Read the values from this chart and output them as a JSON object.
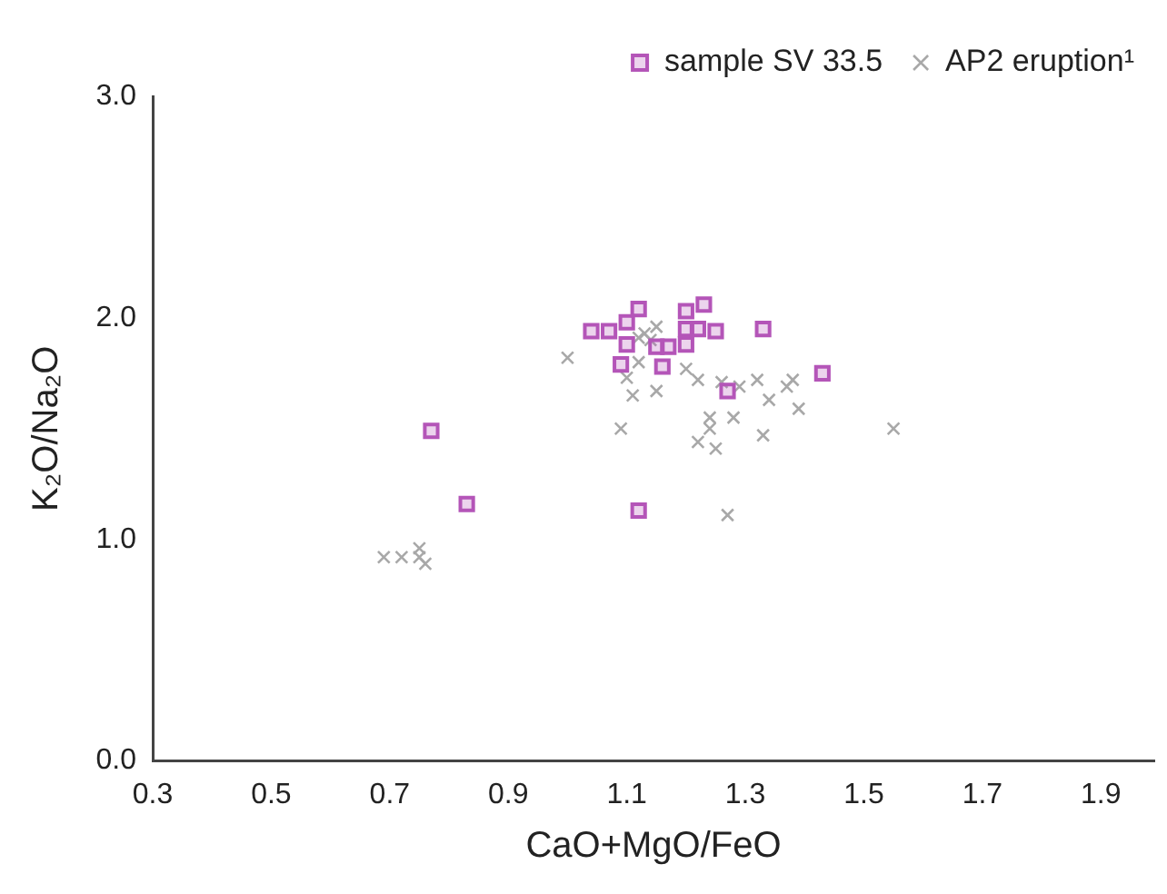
{
  "chart_data": {
    "type": "scatter",
    "xlabel": "CaO+MgO/FeO",
    "ylabel": "K₂O/Na₂O",
    "xlim": [
      0.3,
      1.99
    ],
    "xticks": [
      0.3,
      0.5,
      0.7,
      0.9,
      1.1,
      1.3,
      1.5,
      1.7,
      1.9
    ],
    "ylim": [
      0,
      3
    ],
    "yticks": [
      {
        "value": 0,
        "label": "0.0"
      },
      {
        "value": 1,
        "label": "1.0"
      },
      {
        "value": 2,
        "label": "2.0"
      },
      {
        "value": 3,
        "label": "3.0"
      }
    ],
    "grid": false,
    "legend": "top right",
    "series": [
      {
        "name": "sample SV 33.5",
        "color": "#b455b8",
        "marker": "square",
        "x": [
          1.04,
          1.07,
          1.1,
          1.12,
          1.1,
          1.09,
          1.16,
          1.15,
          1.17,
          1.2,
          1.2,
          1.2,
          1.22,
          1.23,
          1.25,
          1.33,
          1.27,
          1.43,
          1.12,
          0.77,
          0.83
        ],
        "values": [
          1.94,
          1.94,
          1.98,
          2.04,
          1.88,
          1.79,
          1.78,
          1.87,
          1.87,
          1.88,
          2.03,
          1.95,
          1.95,
          2.06,
          1.94,
          1.95,
          1.67,
          1.75,
          1.13,
          1.49,
          1.16
        ]
      },
      {
        "name": "AP2 eruption¹",
        "color": "#a8a8a8",
        "marker": "cross",
        "x": [
          1.0,
          1.1,
          1.11,
          1.15,
          1.12,
          1.13,
          1.15,
          1.2,
          1.22,
          1.26,
          1.29,
          1.32,
          1.34,
          1.37,
          1.38,
          1.39,
          1.09,
          1.24,
          1.28,
          1.24,
          1.22,
          1.25,
          1.33,
          1.55,
          1.27,
          0.69,
          0.72,
          0.75,
          0.76,
          0.75,
          1.12,
          1.14
        ],
        "values": [
          1.82,
          1.73,
          1.65,
          1.67,
          1.8,
          1.93,
          1.96,
          1.77,
          1.72,
          1.71,
          1.69,
          1.72,
          1.63,
          1.69,
          1.72,
          1.59,
          1.5,
          1.55,
          1.55,
          1.5,
          1.44,
          1.41,
          1.47,
          1.5,
          1.11,
          0.92,
          0.92,
          0.96,
          0.89,
          0.92,
          1.91,
          1.9
        ]
      }
    ]
  }
}
